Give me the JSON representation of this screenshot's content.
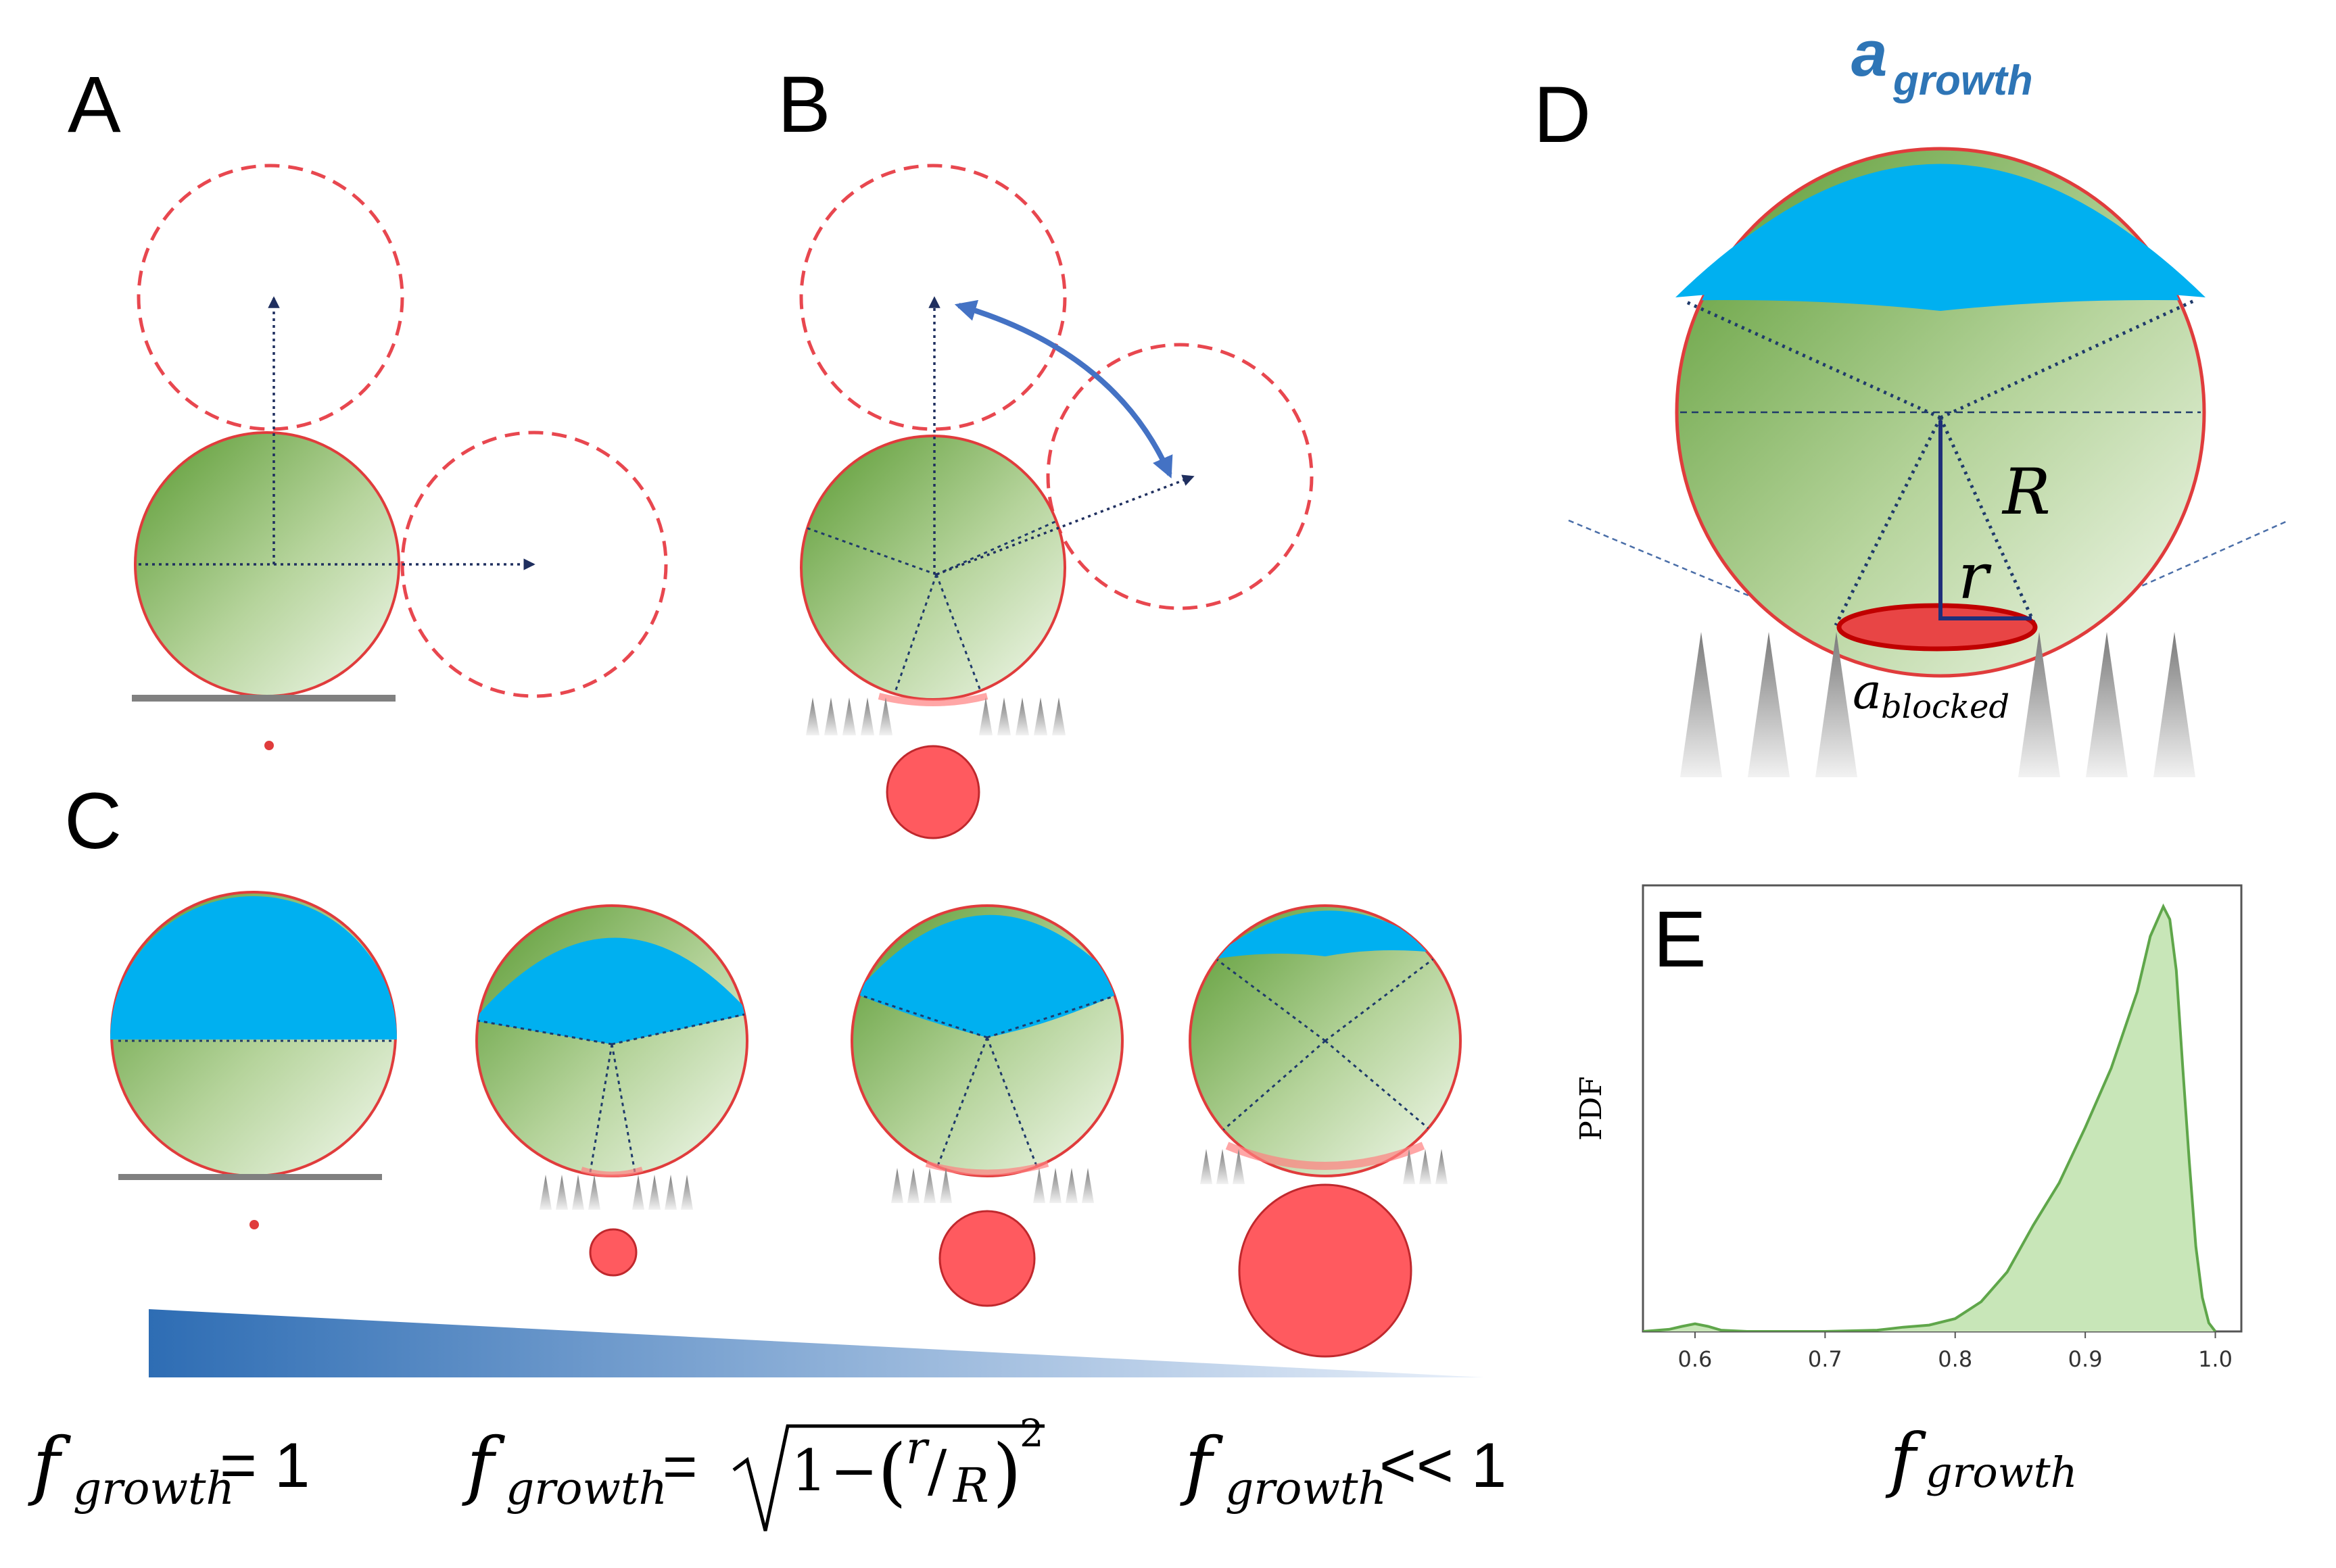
{
  "panels": {
    "a": "A",
    "b": "B",
    "c": "C",
    "d": "D",
    "e": "E"
  },
  "panel_d": {
    "a_growth_base": "a",
    "a_growth_sub": "growth",
    "R_label": "R",
    "r_label": "r",
    "a_blocked_base": "a",
    "a_blocked_sub": "blocked"
  },
  "formulas": {
    "left": {
      "f": "f",
      "sub": "growth",
      "rhs": "= 1"
    },
    "middle": {
      "f": "f",
      "sub": "growth",
      "eq": "=",
      "one": "1",
      "minus": "−",
      "r": "r",
      "R": "R",
      "exp": "2"
    },
    "right": {
      "f": "f",
      "sub": "growth",
      "rhs": "<< 1"
    }
  },
  "colors": {
    "green_dark": "#5a9a32",
    "green_light": "#f4f9ef",
    "cyan": "#00b0f0",
    "red_dashed": "#e8474f",
    "red_fill": "#ff5a5f",
    "arrow_navy": "#1f2f5f",
    "arrow_blue": "#4472c4",
    "label_blue": "#2e75b6",
    "kde_line": "#5fa64a",
    "kde_fill": "#c8e6b8"
  },
  "chart_data": {
    "type": "area",
    "title": "E",
    "xlabel_f": "f",
    "xlabel_sub": "growth",
    "ylabel": "PDF",
    "xlim": [
      0.56,
      1.02
    ],
    "ylim": [
      0,
      1.05
    ],
    "xticks": [
      "0.6",
      "0.7",
      "0.8",
      "0.9",
      "1.0"
    ],
    "xtick_values": [
      0.6,
      0.7,
      0.8,
      0.9,
      1.0
    ],
    "series": [
      {
        "name": "density",
        "x": [
          0.56,
          0.58,
          0.59,
          0.6,
          0.61,
          0.62,
          0.64,
          0.7,
          0.74,
          0.76,
          0.78,
          0.8,
          0.82,
          0.84,
          0.86,
          0.88,
          0.9,
          0.92,
          0.94,
          0.95,
          0.96,
          0.965,
          0.97,
          0.975,
          0.98,
          0.985,
          0.99,
          0.995,
          1.0
        ],
        "y": [
          0.0,
          0.005,
          0.012,
          0.018,
          0.012,
          0.003,
          0.0,
          0.0,
          0.003,
          0.01,
          0.015,
          0.03,
          0.07,
          0.14,
          0.25,
          0.35,
          0.48,
          0.62,
          0.8,
          0.93,
          1.0,
          0.97,
          0.85,
          0.62,
          0.4,
          0.2,
          0.08,
          0.02,
          0.0
        ]
      }
    ]
  }
}
